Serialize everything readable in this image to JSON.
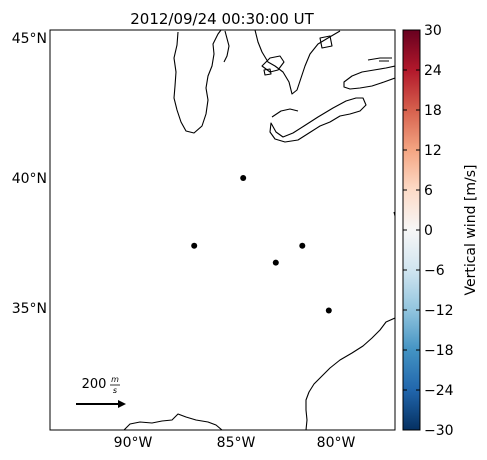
{
  "figure": {
    "title": "2012/09/24 00:30:00 UT"
  },
  "map": {
    "lat_labels": [
      "45°N",
      "40°N",
      "35°N"
    ],
    "lon_labels": [
      "90°W",
      "85°W",
      "80°W"
    ],
    "lat_values": [
      45,
      40,
      35
    ],
    "lon_values": [
      -90,
      -85,
      -80
    ],
    "stations": [
      {
        "lat": 40.0,
        "lon": -84.6
      },
      {
        "lat": 37.6,
        "lon": -87.0
      },
      {
        "lat": 37.6,
        "lon": -81.7
      },
      {
        "lat": 37.0,
        "lon": -83.0
      },
      {
        "lat": 35.3,
        "lon": -80.4
      }
    ],
    "reference_arrow": {
      "label_value": "200",
      "label_unit_num": "m",
      "label_unit_den": "s"
    }
  },
  "colorbar": {
    "label": "Vertical wind [m/s]",
    "ticks": [
      "30",
      "24",
      "18",
      "12",
      "6",
      "0",
      "−6",
      "−12",
      "−18",
      "−24",
      "−30"
    ],
    "min": -30,
    "max": 30,
    "colors": [
      "#67001f",
      "#b2182b",
      "#d6604d",
      "#f4a582",
      "#fddbc7",
      "#f7f7f7",
      "#d1e5f0",
      "#92c5de",
      "#4393c3",
      "#2166ac",
      "#053061"
    ]
  }
}
